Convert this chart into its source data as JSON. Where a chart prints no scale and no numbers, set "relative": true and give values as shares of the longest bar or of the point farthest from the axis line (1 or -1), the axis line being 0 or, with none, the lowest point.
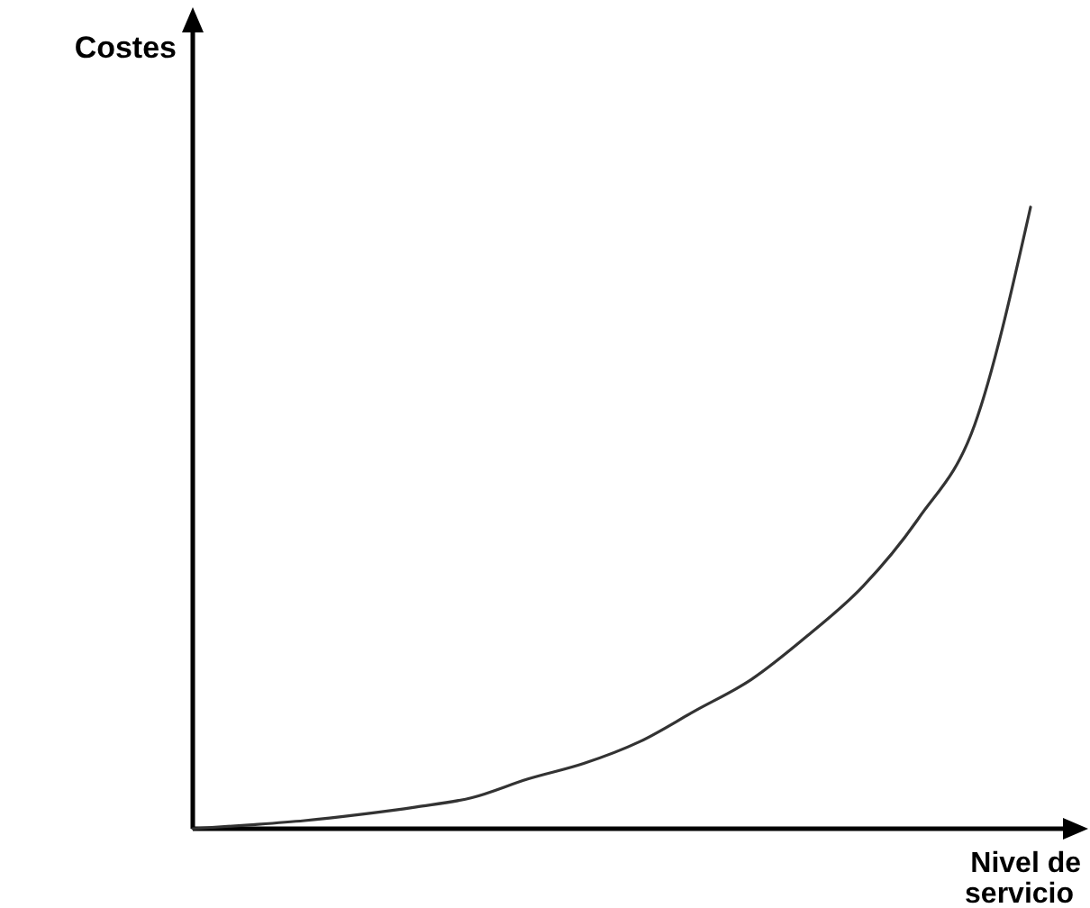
{
  "chart_data": {
    "type": "line",
    "relative": true,
    "xlabel": "Nivel de servicio",
    "ylabel": "Costes",
    "categories": [
      null,
      null,
      null,
      null,
      null,
      null,
      null,
      null,
      null,
      null,
      null,
      null,
      null,
      null,
      null,
      null
    ],
    "series": [
      {
        "color": "#333333",
        "values": [
          0,
          0.006,
          0.013,
          0.023,
          0.035,
          0.05,
          0.08,
          0.105,
          0.14,
          0.19,
          0.24,
          0.31,
          0.39,
          0.5,
          0.65,
          1.0
        ]
      }
    ]
  }
}
